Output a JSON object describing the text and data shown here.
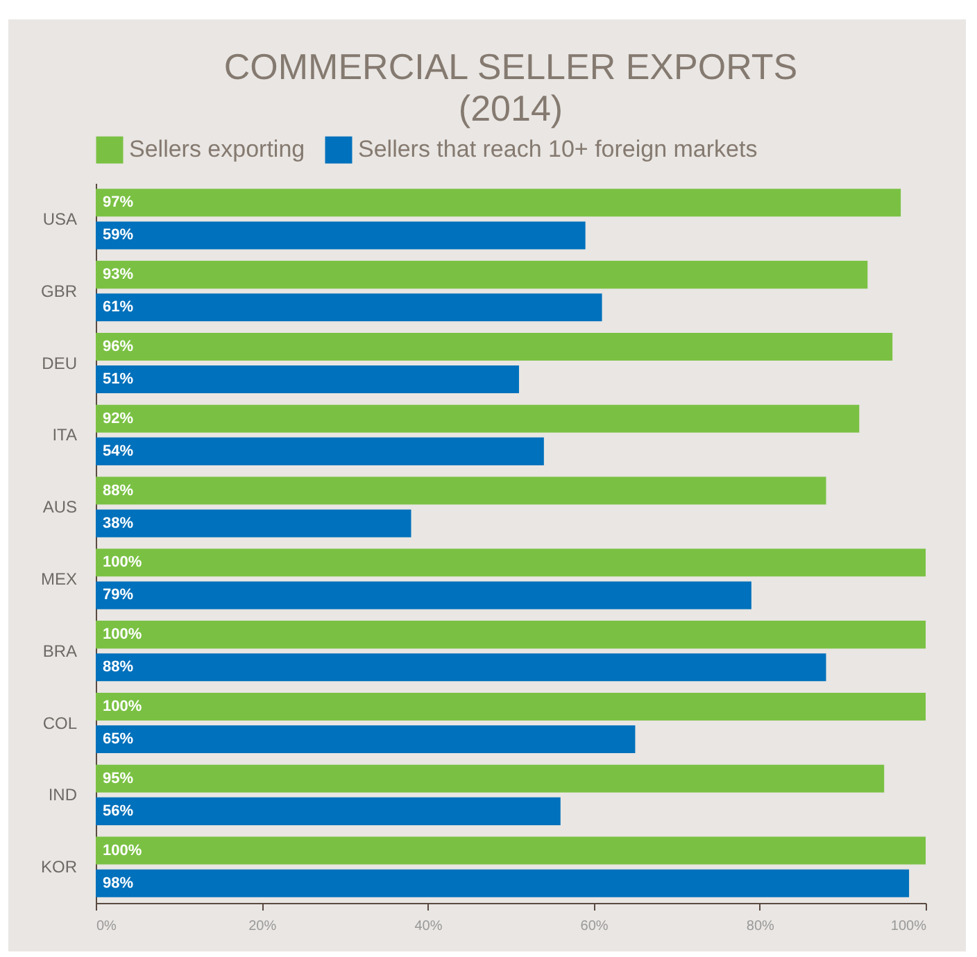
{
  "chart_data": {
    "type": "bar",
    "orientation": "horizontal",
    "title": "COMMERCIAL SELLER EXPORTS",
    "subtitle": "(2014)",
    "categories": [
      "USA",
      "GBR",
      "DEU",
      "ITA",
      "AUS",
      "MEX",
      "BRA",
      "COL",
      "IND",
      "KOR"
    ],
    "series": [
      {
        "name": "Sellers exporting",
        "color": "#7ac143",
        "values": [
          97,
          93,
          96,
          92,
          88,
          100,
          100,
          100,
          95,
          100
        ],
        "value_labels": [
          "97%",
          "93%",
          "96%",
          "92%",
          "88%",
          "100%",
          "100%",
          "100%",
          "95%",
          "100%"
        ]
      },
      {
        "name": "Sellers that reach 10+ foreign markets",
        "color": "#0071bc",
        "values": [
          59,
          61,
          51,
          54,
          38,
          79,
          88,
          65,
          56,
          98
        ],
        "value_labels": [
          "59%",
          "61%",
          "51%",
          "54%",
          "38%",
          "79%",
          "88%",
          "65%",
          "56%",
          "98%"
        ]
      }
    ],
    "xlim": [
      0,
      100
    ],
    "xticks": [
      {
        "value": 0,
        "label": "0%"
      },
      {
        "value": 20,
        "label": "20%"
      },
      {
        "value": 40,
        "label": "40%"
      },
      {
        "value": 60,
        "label": "60%"
      },
      {
        "value": 80,
        "label": "80%"
      },
      {
        "value": 100,
        "label": "100%"
      }
    ],
    "legend": "top",
    "grid": false
  }
}
